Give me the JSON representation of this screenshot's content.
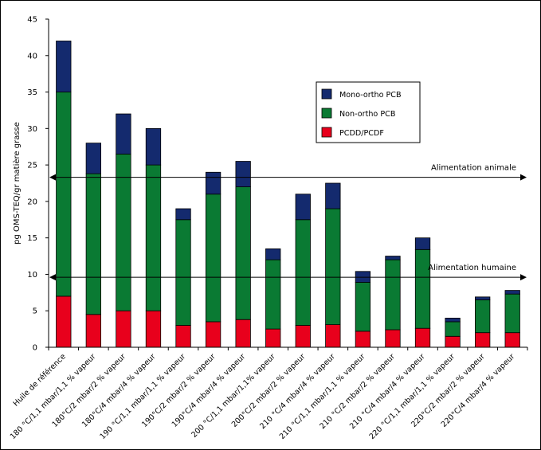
{
  "chart_data": {
    "type": "bar",
    "stacked": true,
    "ylabel": "pg OMS-TEQ/gr matière grasse",
    "xlabel": "",
    "ylim": [
      0,
      45
    ],
    "yticks": [
      0,
      5,
      10,
      15,
      20,
      25,
      30,
      35,
      40,
      45
    ],
    "grid": false,
    "legend_position": "right",
    "categories": [
      "Huile de référence",
      "180 °C/1,1 mbar/1,1 % vapeur",
      "180°C/2 mbar/2 % vapeur",
      "180°C/4 mbar/4 % vapeur",
      "190 °C/1,1 mbar/1,1 % vapeur",
      "190°C/2 mbar/2 % vapeur",
      "190°C/4 mbar/4 % vapeur",
      "200 °C/1,1 mbar/1,1% vapeur",
      "200°C/2 mbar/2 % vapeur",
      "210 °C/4 mbar/4 % vapeur",
      "210 °C/1,1 mbar/1,1 % vapeur",
      "210 °C/2 mbar/2 % vapeur",
      "210 °C/4 mbar/4 % vapeur",
      "220 °C/1,1 mbar/1,1 % vapeur",
      "220°C/2 mbar/2 % vapeur",
      "220°C/4 mbar/4 % vapeur"
    ],
    "series": [
      {
        "name": "PCDD/PCDF",
        "color": "#e8001c",
        "values": [
          7,
          4.5,
          5,
          5,
          3,
          3.5,
          3.8,
          2.5,
          3,
          3.1,
          2.2,
          2.4,
          2.6,
          1.5,
          2,
          2
        ]
      },
      {
        "name": "Non-ortho PCB",
        "color": "#0a7a33",
        "values": [
          28,
          19.3,
          21.5,
          20,
          14.5,
          17.5,
          18.2,
          9.5,
          14.5,
          15.9,
          6.7,
          9.6,
          10.8,
          2,
          4.5,
          5.3
        ]
      },
      {
        "name": "Mono-ortho PCB",
        "color": "#142a6e",
        "values": [
          7,
          4.2,
          5.5,
          5,
          1.5,
          3,
          3.5,
          1.5,
          3.5,
          3.5,
          1.5,
          0.5,
          1.6,
          0.5,
          0.4,
          0.5
        ]
      }
    ],
    "reference_lines": [
      {
        "label": "Alimentation animale",
        "value": 23.3
      },
      {
        "label": "Alimentation humaine",
        "value": 9.6
      }
    ],
    "legend": [
      "Mono-ortho PCB",
      "Non-ortho PCB",
      "PCDD/PCDF"
    ]
  }
}
